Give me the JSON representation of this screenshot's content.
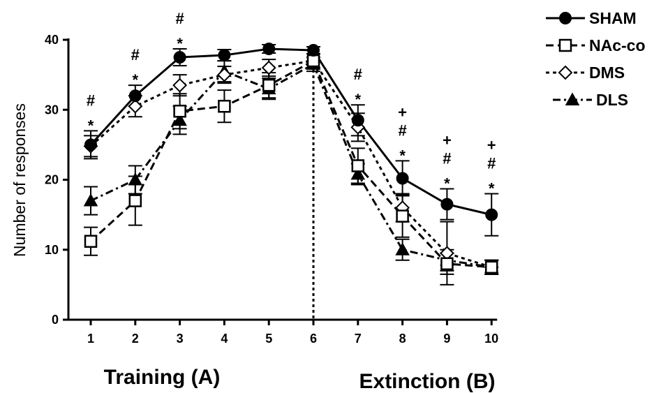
{
  "chart_data": {
    "type": "line",
    "ylabel": "Number of responses",
    "ylim": [
      0,
      40
    ],
    "yticks": [
      0,
      10,
      20,
      30,
      40
    ],
    "x": [
      1,
      2,
      3,
      4,
      5,
      6,
      7,
      8,
      9,
      10
    ],
    "phase_labels": [
      "Training (A)",
      "Extinction (B)"
    ],
    "phase_divider_x": 6,
    "legend_position": "top-right",
    "grid": false,
    "series": [
      {
        "name": "SHAM",
        "marker": "filled-circle",
        "line": "solid",
        "values": [
          25,
          32,
          37.5,
          37.8,
          38.7,
          38.5,
          28.5,
          20.2,
          16.5,
          15
        ],
        "errors": [
          2,
          1.5,
          1.2,
          0.8,
          0.6,
          0.5,
          2.2,
          2.5,
          2.2,
          3
        ]
      },
      {
        "name": "NAc-co",
        "marker": "open-square",
        "line": "long-dash",
        "values": [
          11.2,
          17,
          29.8,
          30.5,
          33.5,
          37,
          22,
          14.8,
          8,
          7.5
        ],
        "errors": [
          2,
          3.5,
          2.5,
          2.3,
          1.8,
          1,
          2.5,
          3,
          1.5,
          1
        ]
      },
      {
        "name": "DMS",
        "marker": "open-diamond",
        "line": "short-dash",
        "values": [
          24.8,
          30.5,
          33.5,
          35,
          36,
          37,
          27.5,
          16,
          9.5,
          7.5
        ],
        "errors": [
          1.5,
          1.5,
          1.5,
          1.2,
          1.2,
          1,
          2,
          2,
          4.5,
          1
        ]
      },
      {
        "name": "DLS",
        "marker": "filled-triangle",
        "line": "dash-dot",
        "values": [
          17,
          20,
          28.5,
          35.5,
          33,
          36.5,
          20.8,
          10,
          8.5,
          7.5
        ],
        "errors": [
          2,
          2,
          2,
          1.5,
          1.5,
          1,
          1.5,
          1.5,
          1.5,
          1
        ]
      }
    ],
    "annotations": [
      {
        "x": 1,
        "marks": [
          "#",
          "*"
        ]
      },
      {
        "x": 2,
        "marks": [
          "#",
          "*"
        ]
      },
      {
        "x": 3,
        "marks": [
          "#",
          "*"
        ]
      },
      {
        "x": 7,
        "marks": [
          "#",
          "*"
        ]
      },
      {
        "x": 8,
        "marks": [
          "+",
          "#",
          "*"
        ]
      },
      {
        "x": 9,
        "marks": [
          "+",
          "#",
          "*"
        ]
      },
      {
        "x": 10,
        "marks": [
          "+",
          "#",
          "*"
        ]
      }
    ]
  }
}
